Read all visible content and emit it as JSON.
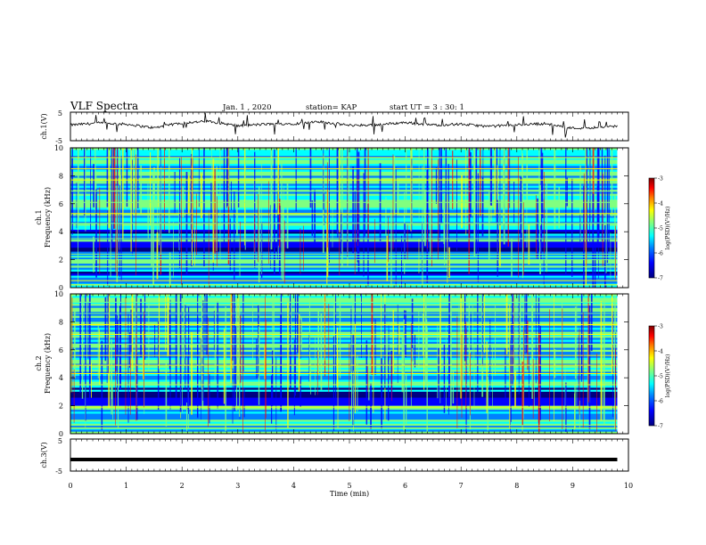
{
  "header": {
    "title": "VLF Spectra",
    "date": "Jan. 1 , 2020",
    "station": "station= KAP",
    "start": "start UT = 3 : 30: 1"
  },
  "colors": {
    "colormap": [
      "#00007f",
      "#0000ff",
      "#0080ff",
      "#00ffff",
      "#80ff80",
      "#ffff00",
      "#ff8000",
      "#ff0000",
      "#7f0000"
    ],
    "trace": "#000000"
  },
  "chart_data": [
    {
      "type": "line",
      "panel": "ch1-waveform",
      "ylabel": "ch.1(V)",
      "ylim": [
        -5,
        5
      ],
      "yticks": [
        "5",
        "-5"
      ],
      "xlim": [
        0,
        10
      ],
      "description_series": "noisy trace hovering near +1 V with dips to about -1.5 V",
      "x": [
        0.0,
        0.5,
        1.0,
        1.5,
        2.0,
        2.5,
        3.0,
        3.5,
        4.0,
        4.5,
        5.0,
        5.5,
        6.0,
        6.5,
        7.0,
        7.5,
        8.0,
        8.5,
        9.0,
        9.5,
        9.8
      ],
      "y": [
        0.5,
        1.2,
        0.8,
        -0.5,
        1.3,
        1.8,
        0.2,
        0.8,
        1.0,
        1.6,
        0.4,
        0.6,
        1.4,
        0.5,
        0.8,
        0.0,
        0.6,
        1.0,
        -0.6,
        -0.3,
        0.2
      ]
    },
    {
      "type": "heatmap",
      "panel": "ch1-spectrogram",
      "ylabel_top": "ch.1",
      "ylabel": "Frequency (kHz)",
      "ylim": [
        0,
        10
      ],
      "yticks": [
        "0",
        "2",
        "4",
        "6",
        "8",
        "10"
      ],
      "xlim": [
        0,
        9.8
      ],
      "colorbar": {
        "label": "log(PSD)(V²/Hz)",
        "range": [
          -7,
          -3
        ],
        "ticks": [
          "-3",
          "-4",
          "-5",
          "-6",
          "-7"
        ]
      },
      "dark_bands_khz": [
        [
          2.6,
          3.3
        ],
        [
          3.9,
          4.2
        ],
        [
          0.8,
          1.2
        ]
      ],
      "bright_lines_khz": [
        0.2,
        0.5,
        1.5,
        2.0,
        2.2,
        2.4,
        3.5,
        4.6,
        5.3,
        6.1,
        6.9,
        7.7,
        8.5,
        9.3
      ]
    },
    {
      "type": "heatmap",
      "panel": "ch2-spectrogram",
      "ylabel_top": "ch.2",
      "ylabel": "Frequency (kHz)",
      "ylim": [
        0,
        10
      ],
      "yticks": [
        "0",
        "2",
        "4",
        "6",
        "8",
        "10"
      ],
      "xlim": [
        0,
        9.8
      ],
      "colorbar": {
        "label": "log(PSD)(V²/Hz)",
        "range": [
          -7,
          -3
        ],
        "ticks": [
          "-3",
          "-4",
          "-5",
          "-6",
          "-7"
        ]
      },
      "dark_bands_khz": [
        [
          2.0,
          3.0
        ],
        [
          3.1,
          3.3
        ]
      ],
      "bright_lines_khz": [
        0.4,
        0.6,
        1.9,
        3.5,
        4.3,
        4.9,
        5.6,
        6.4,
        7.1,
        7.8,
        8.6,
        9.4
      ]
    },
    {
      "type": "line",
      "panel": "ch3-waveform",
      "ylabel": "ch.3(V)",
      "ylim": [
        -5,
        5
      ],
      "yticks": [
        "5",
        "-5"
      ],
      "xlim": [
        0,
        10
      ],
      "x": [
        0,
        9.8
      ],
      "y": [
        -1.4,
        -1.4
      ],
      "xlabel": "Time (min)",
      "xticks": [
        "0",
        "1",
        "2",
        "3",
        "4",
        "5",
        "6",
        "7",
        "8",
        "9",
        "10"
      ]
    }
  ]
}
